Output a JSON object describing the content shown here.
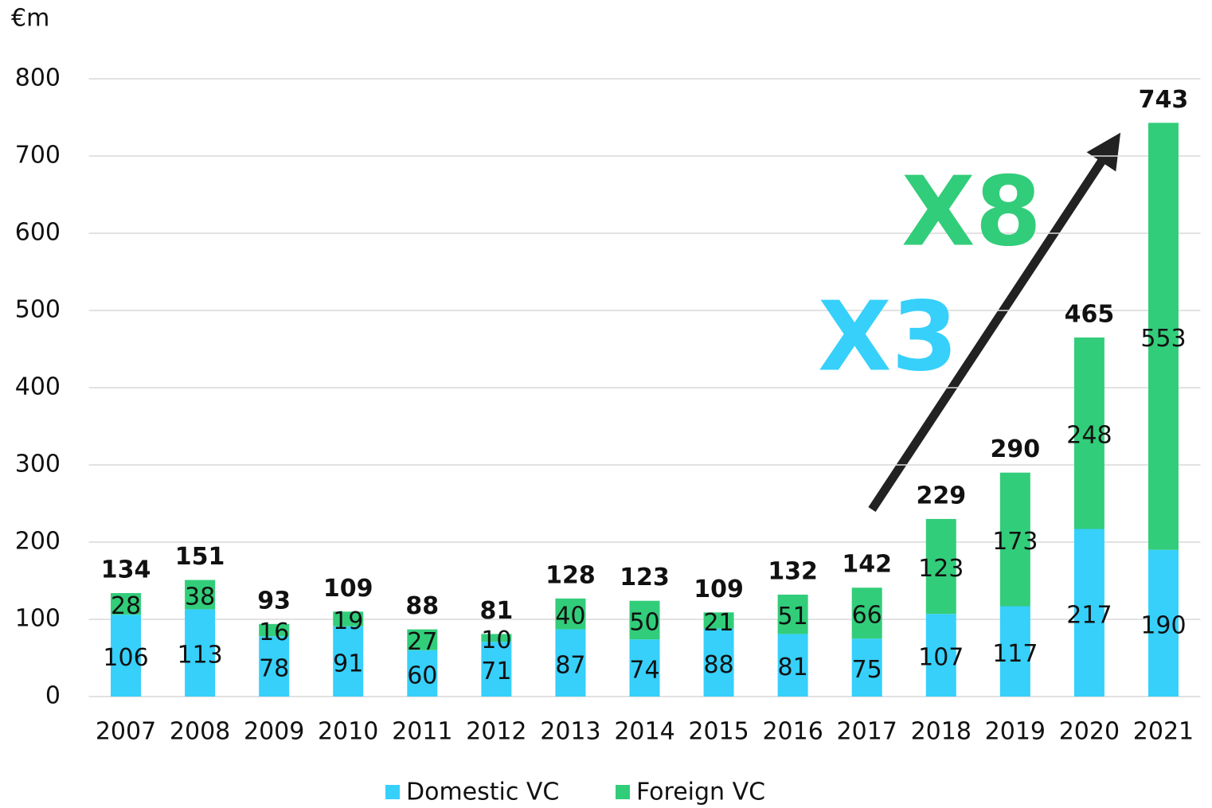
{
  "chart_data": {
    "type": "stacked_bar",
    "y_axis_label": "€m",
    "categories": [
      "2007",
      "2008",
      "2009",
      "2010",
      "2011",
      "2012",
      "2013",
      "2014",
      "2015",
      "2016",
      "2017",
      "2018",
      "2019",
      "2020",
      "2021"
    ],
    "series": [
      {
        "name": "Domestic VC",
        "color": "#36d0fb",
        "values": [
          106,
          113,
          78,
          91,
          60,
          71,
          87,
          74,
          88,
          81,
          75,
          107,
          117,
          217,
          190
        ]
      },
      {
        "name": "Foreign VC",
        "color": "#32cd7a",
        "values": [
          28,
          38,
          16,
          19,
          27,
          10,
          40,
          50,
          21,
          51,
          66,
          123,
          173,
          248,
          553
        ]
      }
    ],
    "totals": [
      134,
      151,
      93,
      109,
      88,
      81,
      128,
      123,
      109,
      132,
      142,
      229,
      290,
      465,
      743
    ],
    "annotations": [
      {
        "text": "X3",
        "color": "#36d0fb"
      },
      {
        "text": "X8",
        "color": "#32cd7a"
      }
    ],
    "ylim": [
      0,
      800
    ],
    "yticks": [
      0,
      100,
      200,
      300,
      400,
      500,
      600,
      700,
      800
    ],
    "grid": true,
    "legend": "bottom"
  }
}
